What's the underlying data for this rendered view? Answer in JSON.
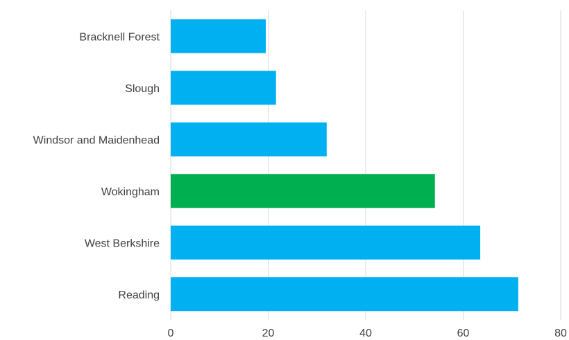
{
  "chart_data": {
    "type": "bar",
    "orientation": "horizontal",
    "categories": [
      "Bracknell Forest",
      "Slough",
      "Windsor and Maidenhead",
      "Wokingham",
      "West Berkshire",
      "Reading"
    ],
    "values": [
      19.5,
      21.6,
      32.0,
      54.2,
      63.5,
      71.3
    ],
    "xlim": [
      0,
      80
    ],
    "xticks": [
      "0",
      "20",
      "40",
      "60",
      "80"
    ],
    "grid": true,
    "legend": false,
    "colors": {
      "default": "#00b0f0",
      "highlight": "#00b050",
      "grid": "#d9d9d9",
      "text": "#404040"
    },
    "highlight_category": "Wokingham"
  }
}
